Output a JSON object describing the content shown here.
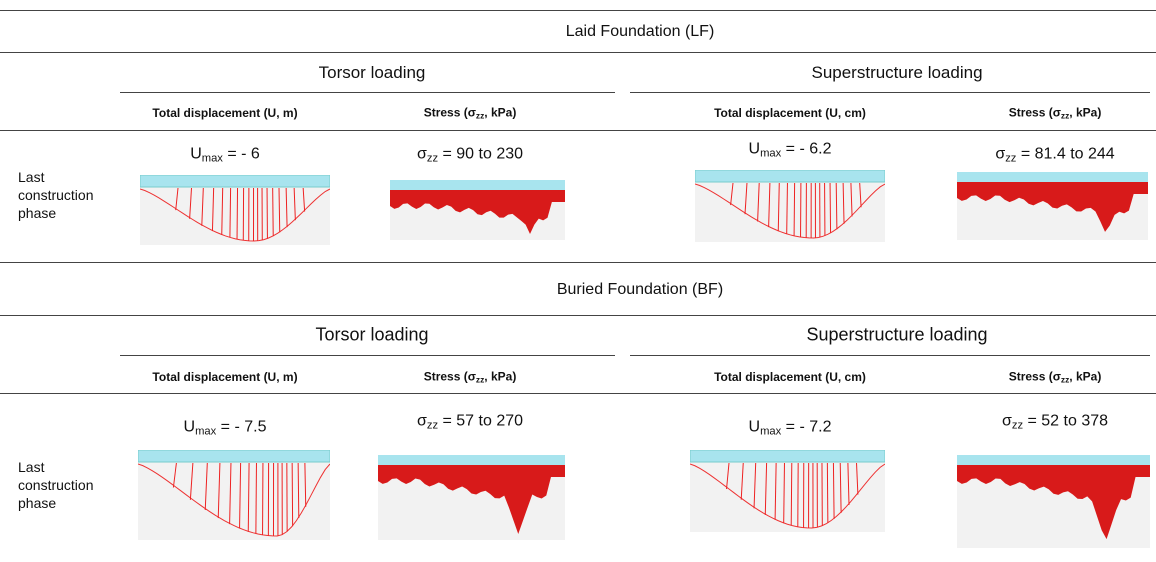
{
  "sections": [
    {
      "title": "Laid Foundation (LF)",
      "groups": [
        {
          "title": "Torsor loading",
          "columns": [
            {
              "header": {
                "before": "Total displacement (U, m)"
              },
              "value": {
                "symbol": "U",
                "sub": "max",
                "rest": " = - 6"
              }
            },
            {
              "header": {
                "before": "Stress (σ",
                "sub": "zz",
                "after": ", kPa)"
              },
              "value": {
                "symbol": "σ",
                "sub": "zz",
                "rest": " = 90 to 230"
              }
            }
          ]
        },
        {
          "title": "Superstructure loading",
          "columns": [
            {
              "header": {
                "before": "Total displacement (U, cm)"
              },
              "value": {
                "symbol": "U",
                "sub": "max",
                "rest": " = - 6.2"
              }
            },
            {
              "header": {
                "before": "Stress (σ",
                "sub": "zz",
                "after": ", kPa)"
              },
              "value": {
                "symbol": "σ",
                "sub": "zz",
                "rest": " = 81.4 to 244"
              }
            }
          ]
        }
      ],
      "row_label": "Last construction phase"
    },
    {
      "title": "Buried Foundation (BF)",
      "groups": [
        {
          "title": "Torsor loading",
          "columns": [
            {
              "header": {
                "before": "Total displacement (U, m)"
              },
              "value": {
                "symbol": "U",
                "sub": "max",
                "rest": " = - 7.5"
              }
            },
            {
              "header": {
                "before": "Stress (σ",
                "sub": "zz",
                "after": ", kPa)"
              },
              "value": {
                "symbol": "σ",
                "sub": "zz",
                "rest": " = 57 to 270"
              }
            }
          ]
        },
        {
          "title": "Superstructure loading",
          "columns": [
            {
              "header": {
                "before": "Total displacement (U, cm)"
              },
              "value": {
                "symbol": "U",
                "sub": "max",
                "rest": " = - 7.2"
              }
            },
            {
              "header": {
                "before": "Stress (σ",
                "sub": "zz",
                "after": ", kPa)"
              },
              "value": {
                "symbol": "σ",
                "sub": "zz",
                "rest": " = 52 to 378"
              }
            }
          ]
        }
      ],
      "row_label": "Last construction phase"
    }
  ]
}
